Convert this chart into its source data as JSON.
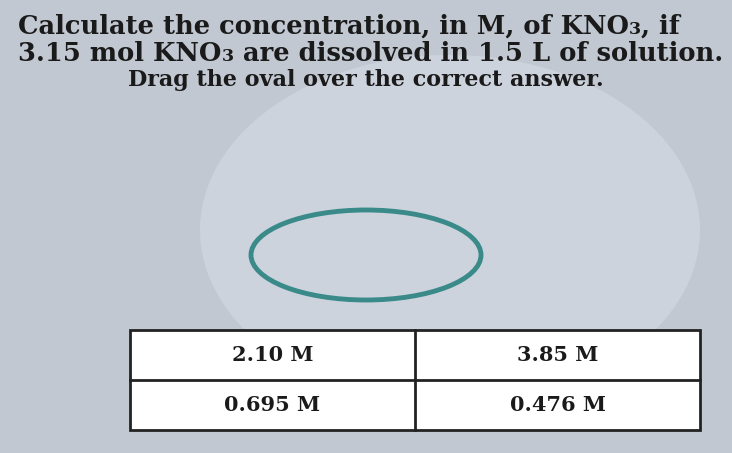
{
  "background_color": "#c2c8d2",
  "text_color": "#1a1a1a",
  "oval_color": "#3a8a8a",
  "oval_color2": "#4a9a9a",
  "table_border_color": "#222222",
  "table_bg_color": "#ffffff",
  "font_size_title": 18.5,
  "font_size_subtitle": 16,
  "font_size_answers": 15,
  "answers": [
    [
      "2.10 M",
      "3.85 M"
    ],
    [
      "0.695 M",
      "0.476 M"
    ]
  ]
}
